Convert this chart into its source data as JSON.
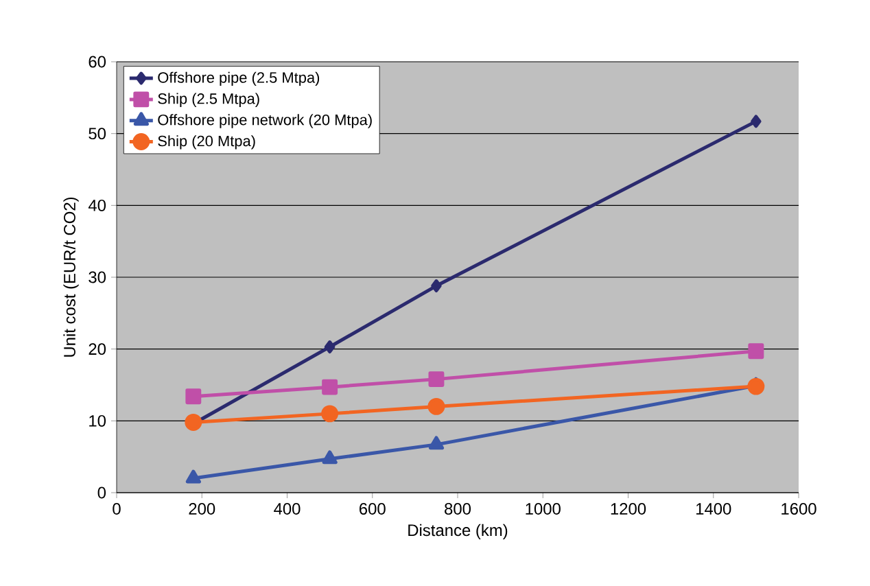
{
  "chart_data": {
    "type": "line",
    "xlabel": "Distance (km)",
    "ylabel": "Unit cost (EUR/t CO2)",
    "x": [
      180,
      500,
      750,
      1500
    ],
    "series": [
      {
        "name": "Offshore pipe (2.5 Mtpa)",
        "color": "#2b2a6e",
        "marker": "diamond",
        "values": [
          9.6,
          20.3,
          28.8,
          51.7
        ]
      },
      {
        "name": "Ship (2.5 Mtpa)",
        "color": "#c04fa8",
        "marker": "square",
        "values": [
          13.4,
          14.7,
          15.8,
          19.7
        ]
      },
      {
        "name": "Offshore pipe network (20 Mtpa)",
        "color": "#3a57a8",
        "marker": "triangle",
        "values": [
          2.0,
          4.7,
          6.7,
          14.9
        ]
      },
      {
        "name": "Ship (20 Mtpa)",
        "color": "#f26522",
        "marker": "circle",
        "values": [
          9.8,
          11.0,
          12.0,
          14.8
        ]
      }
    ],
    "xlim": [
      0,
      1600
    ],
    "xticks": [
      0,
      200,
      400,
      600,
      800,
      1000,
      1200,
      1400,
      1600
    ],
    "ylim": [
      0,
      60
    ],
    "yticks": [
      0,
      10,
      20,
      30,
      40,
      50,
      60
    ],
    "grid": "y",
    "legend": "top left",
    "line_style": "solid"
  }
}
